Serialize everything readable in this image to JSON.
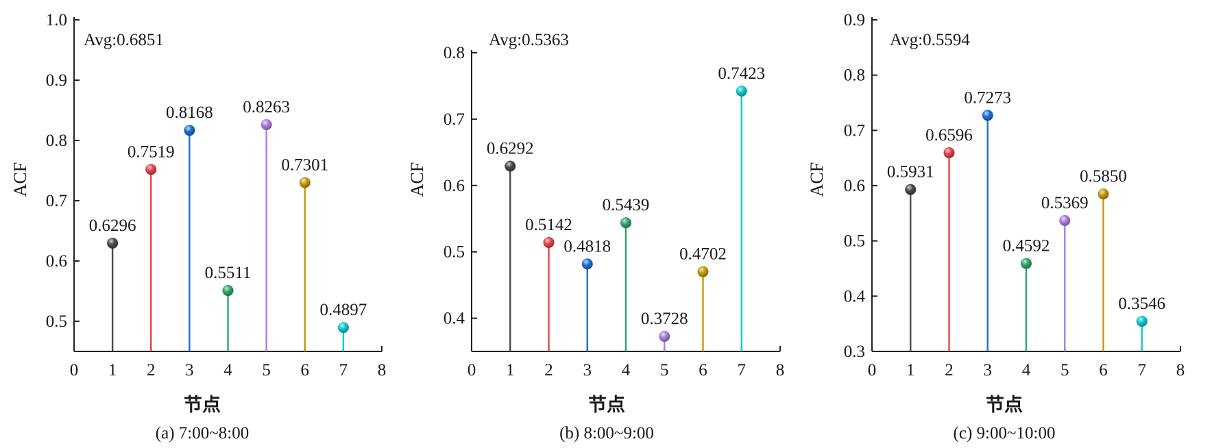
{
  "chart_data": [
    {
      "type": "stem",
      "caption": "(a) 7:00~8:00",
      "annotation": "Avg:0.6851",
      "xlabel": "节点",
      "ylabel": "ACF",
      "xlim": [
        0,
        8
      ],
      "ylim": [
        0.45,
        1.0
      ],
      "xticks": [
        "0",
        "1",
        "2",
        "3",
        "4",
        "5",
        "6",
        "7",
        "8"
      ],
      "yticks": [
        "0.5",
        "0.6",
        "0.7",
        "0.8",
        "0.9",
        "1.0"
      ],
      "points": [
        {
          "x": 1,
          "y": 0.6296,
          "label": "0.6296",
          "color": "#4a4a4a"
        },
        {
          "x": 2,
          "y": 0.7519,
          "label": "0.7519",
          "color": "#e8434a"
        },
        {
          "x": 3,
          "y": 0.8168,
          "label": "0.8168",
          "color": "#1f6fd6"
        },
        {
          "x": 4,
          "y": 0.5511,
          "label": "0.5511",
          "color": "#2ea86a"
        },
        {
          "x": 5,
          "y": 0.8263,
          "label": "0.8263",
          "color": "#a97ee0"
        },
        {
          "x": 6,
          "y": 0.7301,
          "label": "0.7301",
          "color": "#c79a0a"
        },
        {
          "x": 7,
          "y": 0.4897,
          "label": "0.4897",
          "color": "#12c9cf"
        }
      ]
    },
    {
      "type": "stem",
      "caption": "(b) 8:00~9:00",
      "annotation": "Avg:0.5363",
      "xlabel": "节点",
      "ylabel": "ACF",
      "xlim": [
        0,
        8
      ],
      "ylim": [
        0.35,
        0.8
      ],
      "xticks": [
        "0",
        "1",
        "2",
        "3",
        "4",
        "5",
        "6",
        "7",
        "8"
      ],
      "yticks": [
        "0.4",
        "0.5",
        "0.6",
        "0.7",
        "0.8"
      ],
      "points": [
        {
          "x": 1,
          "y": 0.6292,
          "label": "0.6292",
          "color": "#4a4a4a"
        },
        {
          "x": 2,
          "y": 0.5142,
          "label": "0.5142",
          "color": "#e8434a"
        },
        {
          "x": 3,
          "y": 0.4818,
          "label": "0.4818",
          "color": "#1f6fd6"
        },
        {
          "x": 4,
          "y": 0.5439,
          "label": "0.5439",
          "color": "#2ea86a"
        },
        {
          "x": 5,
          "y": 0.3728,
          "label": "0.3728",
          "color": "#a97ee0"
        },
        {
          "x": 6,
          "y": 0.4702,
          "label": "0.4702",
          "color": "#c79a0a"
        },
        {
          "x": 7,
          "y": 0.7423,
          "label": "0.7423",
          "color": "#12c9cf"
        }
      ]
    },
    {
      "type": "stem",
      "caption": "(c) 9:00~10:00",
      "annotation": "Avg:0.5594",
      "xlabel": "节点",
      "ylabel": "ACF",
      "xlim": [
        0,
        8
      ],
      "ylim": [
        0.3,
        0.9
      ],
      "xticks": [
        "0",
        "1",
        "2",
        "3",
        "4",
        "5",
        "6",
        "7",
        "8"
      ],
      "yticks": [
        "0.3",
        "0.4",
        "0.5",
        "0.6",
        "0.7",
        "0.8",
        "0.9"
      ],
      "points": [
        {
          "x": 1,
          "y": 0.5931,
          "label": "0.5931",
          "color": "#4a4a4a"
        },
        {
          "x": 2,
          "y": 0.6596,
          "label": "0.6596",
          "color": "#e8434a"
        },
        {
          "x": 3,
          "y": 0.7273,
          "label": "0.7273",
          "color": "#1f6fd6"
        },
        {
          "x": 4,
          "y": 0.4592,
          "label": "0.4592",
          "color": "#2ea86a"
        },
        {
          "x": 5,
          "y": 0.5369,
          "label": "0.5369",
          "color": "#a97ee0"
        },
        {
          "x": 6,
          "y": 0.585,
          "label": "0.5850",
          "color": "#c79a0a"
        },
        {
          "x": 7,
          "y": 0.3546,
          "label": "0.3546",
          "color": "#12c9cf"
        }
      ]
    }
  ]
}
